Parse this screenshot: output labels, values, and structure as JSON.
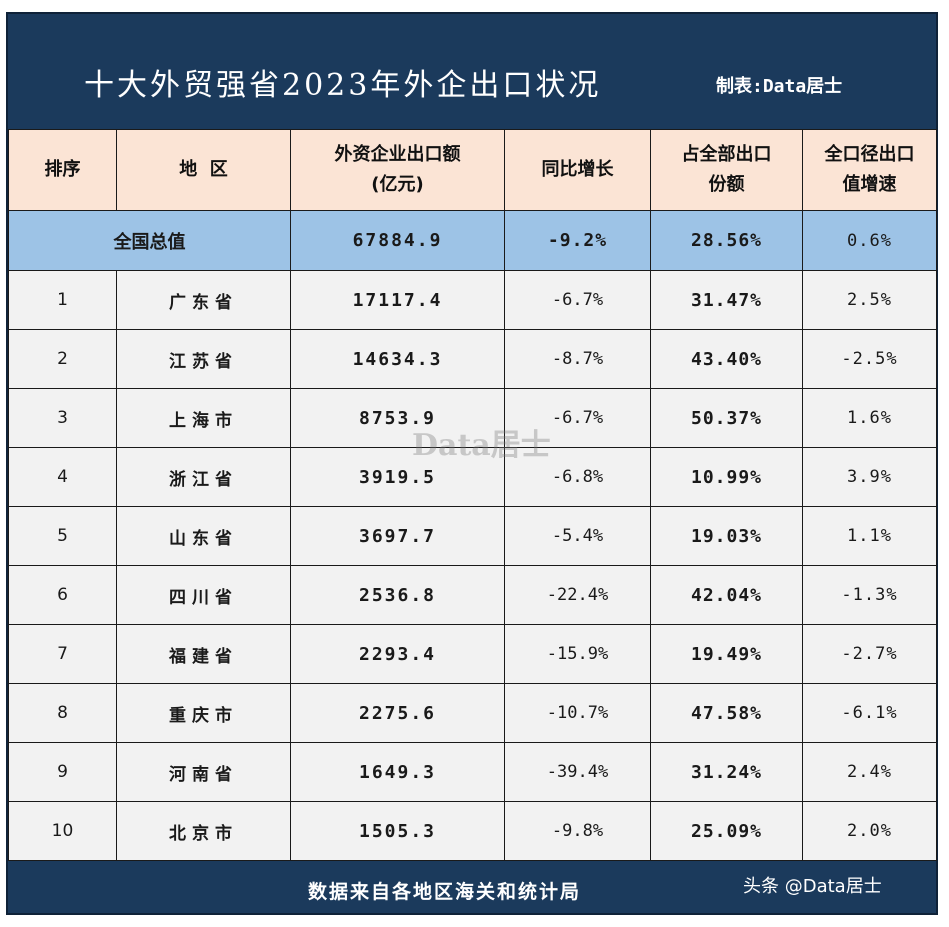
{
  "title": "十大外贸强省2023年外企出口状况",
  "maker": "制表:Data居士",
  "headers": {
    "rank": "排序",
    "region": "地  区",
    "export_amount_line1": "外资企业出口额",
    "export_amount_line2": "(亿元)",
    "yoy": "同比增长",
    "share_line1": "占全部出口",
    "share_line2": "份额",
    "total_growth_line1": "全口径出口",
    "total_growth_line2": "值增速"
  },
  "summary": {
    "label": "全国总值",
    "export_amount": "67884.9",
    "yoy": "-9.2%",
    "share": "28.56%",
    "total_growth": "0.6%"
  },
  "rows": [
    {
      "rank": "1",
      "region": "广东省",
      "export_amount": "17117.4",
      "yoy": "-6.7%",
      "share": "31.47%",
      "total_growth": "2.5%"
    },
    {
      "rank": "2",
      "region": "江苏省",
      "export_amount": "14634.3",
      "yoy": "-8.7%",
      "share": "43.40%",
      "total_growth": "-2.5%"
    },
    {
      "rank": "3",
      "region": "上海市",
      "export_amount": "8753.9",
      "yoy": "-6.7%",
      "share": "50.37%",
      "total_growth": "1.6%"
    },
    {
      "rank": "4",
      "region": "浙江省",
      "export_amount": "3919.5",
      "yoy": "-6.8%",
      "share": "10.99%",
      "total_growth": "3.9%"
    },
    {
      "rank": "5",
      "region": "山东省",
      "export_amount": "3697.7",
      "yoy": "-5.4%",
      "share": "19.03%",
      "total_growth": "1.1%"
    },
    {
      "rank": "6",
      "region": "四川省",
      "export_amount": "2536.8",
      "yoy": "-22.4%",
      "share": "42.04%",
      "total_growth": "-1.3%"
    },
    {
      "rank": "7",
      "region": "福建省",
      "export_amount": "2293.4",
      "yoy": "-15.9%",
      "share": "19.49%",
      "total_growth": "-2.7%"
    },
    {
      "rank": "8",
      "region": "重庆市",
      "export_amount": "2275.6",
      "yoy": "-10.7%",
      "share": "47.58%",
      "total_growth": "-6.1%"
    },
    {
      "rank": "9",
      "region": "河南省",
      "export_amount": "1649.3",
      "yoy": "-39.4%",
      "share": "31.24%",
      "total_growth": "2.4%"
    },
    {
      "rank": "10",
      "region": "北京市",
      "export_amount": "1505.3",
      "yoy": "-9.8%",
      "share": "25.09%",
      "total_growth": "2.0%"
    }
  ],
  "footer": {
    "source": "数据来自各地区海关和统计局",
    "credit": "头条 @Data居士"
  },
  "watermark": "Data居士",
  "colors": {
    "frame": "#1b3a5c",
    "header_bg": "#fbe4d5",
    "summary_bg": "#9dc3e6",
    "row_bg": "#f2f2f2"
  }
}
